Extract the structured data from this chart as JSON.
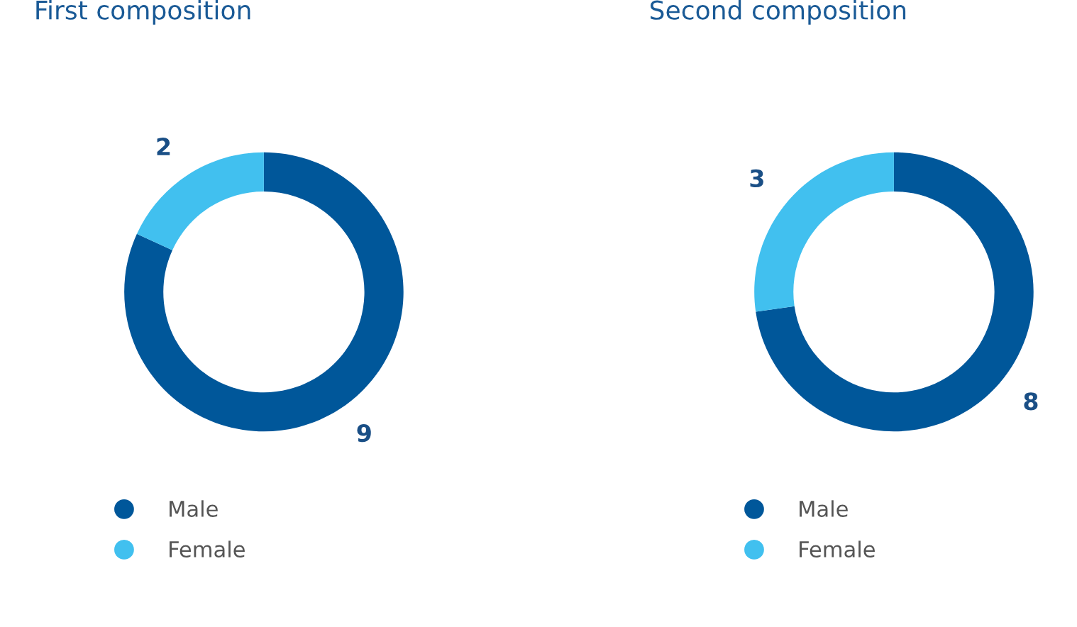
{
  "chart_data": [
    {
      "type": "donut",
      "title": "First composition",
      "categories": [
        "Male",
        "Female"
      ],
      "values": [
        9,
        2
      ],
      "colors": [
        "#00579a",
        "#41c0ef"
      ],
      "data_labels": true,
      "legend": "bottom left"
    },
    {
      "type": "donut",
      "title": "Second composition",
      "categories": [
        "Male",
        "Female"
      ],
      "values": [
        8,
        3
      ],
      "colors": [
        "#00579a",
        "#41c0ef"
      ],
      "data_labels": true,
      "legend": "bottom left"
    }
  ]
}
